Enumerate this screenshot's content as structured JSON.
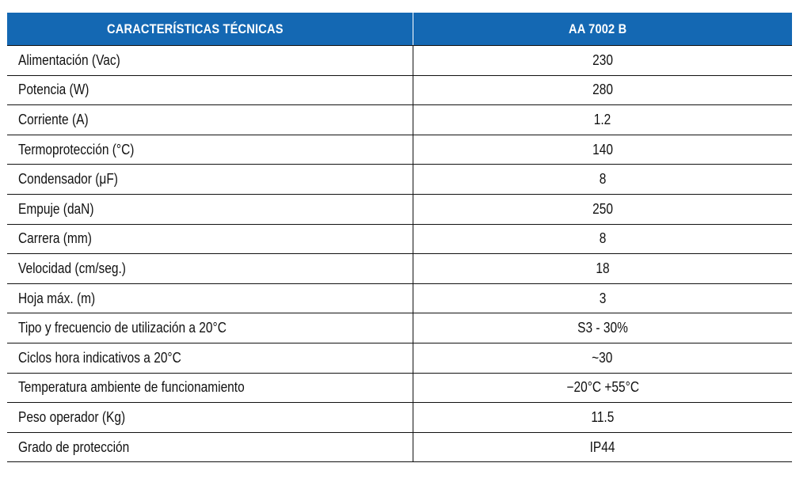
{
  "table": {
    "headers": [
      "CARACTERÍSTICAS TÉCNICAS",
      "AA 7002 B"
    ],
    "rows": [
      {
        "label": "Alimentación (Vac)",
        "value": "230"
      },
      {
        "label": "Potencia (W)",
        "value": "280"
      },
      {
        "label": "Corriente (A)",
        "value": "1.2"
      },
      {
        "label": "Termoprotección (°C)",
        "value": "140"
      },
      {
        "label": "Condensador (μF)",
        "value": "8"
      },
      {
        "label": "Empuje (daN)",
        "value": "250"
      },
      {
        "label": "Carrera (mm)",
        "value": "8"
      },
      {
        "label": "Velocidad (cm/seg.)",
        "value": "18"
      },
      {
        "label": "Hoja máx. (m)",
        "value": "3"
      },
      {
        "label": "Tipo y frecuencio de utilización a 20°C",
        "value": "S3 - 30%"
      },
      {
        "label": "Ciclos hora indicativos a 20°C",
        "value": "~30"
      },
      {
        "label": "Temperatura ambiente de funcionamiento",
        "value": "−20°C +55°C"
      },
      {
        "label": "Peso operador (Kg)",
        "value": "11.5"
      },
      {
        "label": "Grado de protección",
        "value": "IP44"
      }
    ]
  },
  "colors": {
    "header_bg": "#1468b3",
    "header_text": "#ffffff",
    "rule": "#111111"
  }
}
